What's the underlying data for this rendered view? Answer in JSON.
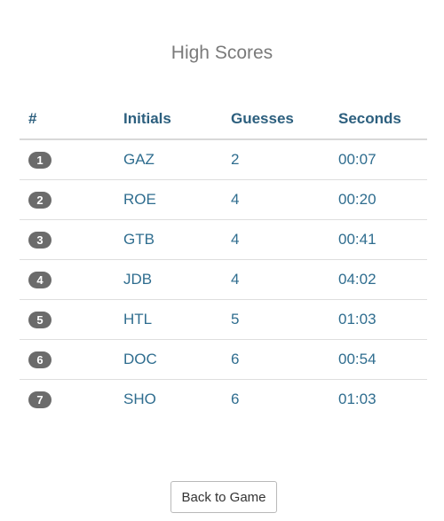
{
  "title": "High Scores",
  "table": {
    "headers": {
      "rank": "#",
      "initials": "Initials",
      "guesses": "Guesses",
      "seconds": "Seconds"
    },
    "rows": [
      {
        "rank": "1",
        "initials": "GAZ",
        "guesses": "2",
        "seconds": "00:07"
      },
      {
        "rank": "2",
        "initials": "ROE",
        "guesses": "4",
        "seconds": "00:20"
      },
      {
        "rank": "3",
        "initials": "GTB",
        "guesses": "4",
        "seconds": "00:41"
      },
      {
        "rank": "4",
        "initials": "JDB",
        "guesses": "4",
        "seconds": "04:02"
      },
      {
        "rank": "5",
        "initials": "HTL",
        "guesses": "5",
        "seconds": "01:03"
      },
      {
        "rank": "6",
        "initials": "DOC",
        "guesses": "6",
        "seconds": "00:54"
      },
      {
        "rank": "7",
        "initials": "SHO",
        "guesses": "6",
        "seconds": "01:03"
      }
    ]
  },
  "back_button_label": "Back to Game",
  "colors": {
    "title": "#7a7a7a",
    "header_text": "#2c5f7e",
    "cell_text": "#2f6d8f",
    "badge_bg": "#6b6b6b"
  }
}
